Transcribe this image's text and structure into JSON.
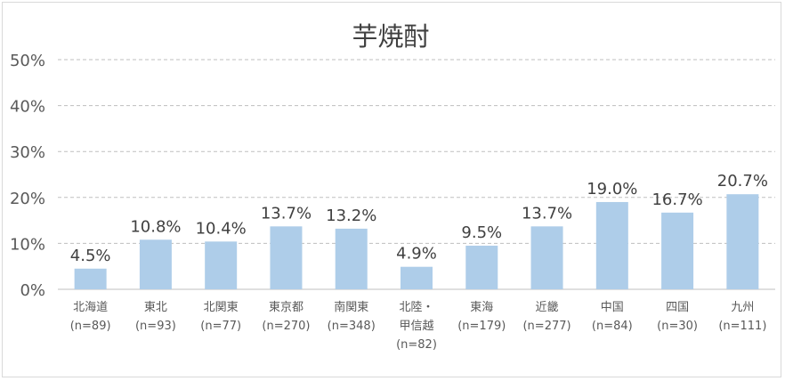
{
  "chart_data": {
    "type": "bar",
    "title": "芋焼酎",
    "xlabel": "",
    "ylabel": "",
    "ylim": [
      0,
      50
    ],
    "yticks": [
      "0%",
      "10%",
      "20%",
      "30%",
      "40%",
      "50%"
    ],
    "grid": true,
    "categories": [
      {
        "lines": [
          "北海道",
          "(n=89)"
        ],
        "value": 4.5,
        "label": "4.5%"
      },
      {
        "lines": [
          "東北",
          "(n=93)"
        ],
        "value": 10.8,
        "label": "10.8%"
      },
      {
        "lines": [
          "北関東",
          "(n=77)"
        ],
        "value": 10.4,
        "label": "10.4%"
      },
      {
        "lines": [
          "東京都",
          "(n=270)"
        ],
        "value": 13.7,
        "label": "13.7%"
      },
      {
        "lines": [
          "南関東",
          "(n=348)"
        ],
        "value": 13.2,
        "label": "13.2%"
      },
      {
        "lines": [
          "北陸・",
          "甲信越",
          "(n=82)"
        ],
        "value": 4.9,
        "label": "4.9%"
      },
      {
        "lines": [
          "東海",
          "(n=179)"
        ],
        "value": 9.5,
        "label": "9.5%"
      },
      {
        "lines": [
          "近畿",
          "(n=277)"
        ],
        "value": 13.7,
        "label": "13.7%"
      },
      {
        "lines": [
          "中国",
          "(n=84)"
        ],
        "value": 19.0,
        "label": "19.0%"
      },
      {
        "lines": [
          "四国",
          "(n=30)"
        ],
        "value": 16.7,
        "label": "16.7%"
      },
      {
        "lines": [
          "九州",
          "(n=111)"
        ],
        "value": 20.7,
        "label": "20.7%"
      }
    ],
    "bar_color": "#aecde9"
  }
}
